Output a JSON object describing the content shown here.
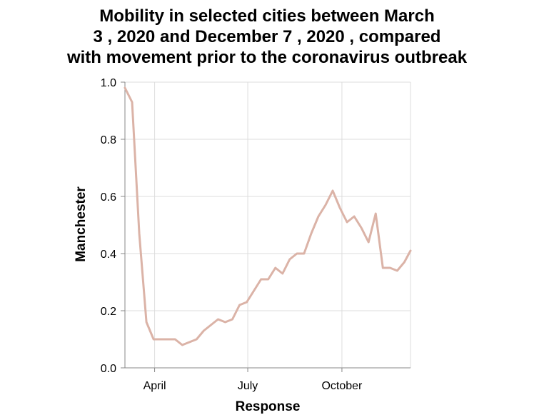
{
  "chart_data": {
    "type": "line",
    "title_lines": [
      "Mobility in selected cities between March",
      "3 , 2020 and December 7 , 2020 , compared",
      "with movement prior to the coronavirus outbreak"
    ],
    "xlabel": "Response",
    "ylabel": "Manchester",
    "x_type": "date",
    "xlim": [
      "2020-03-03",
      "2020-12-07"
    ],
    "ylim": [
      0,
      1
    ],
    "y_ticks": [
      "0.0",
      "0.2",
      "0.4",
      "0.6",
      "0.8",
      "1.0"
    ],
    "x_ticks": [
      {
        "label": "April",
        "date": "2020-04-01"
      },
      {
        "label": "July",
        "date": "2020-07-01"
      },
      {
        "label": "October",
        "date": "2020-10-01"
      }
    ],
    "grid": true,
    "line_color": "#dbb3a7",
    "series": [
      {
        "x": [
          "2020-03-03",
          "2020-03-10",
          "2020-03-17",
          "2020-03-24",
          "2020-03-31",
          "2020-04-07",
          "2020-04-14",
          "2020-04-21",
          "2020-04-28",
          "2020-05-05",
          "2020-05-12",
          "2020-05-19",
          "2020-05-26",
          "2020-06-02",
          "2020-06-09",
          "2020-06-16",
          "2020-06-23",
          "2020-06-30",
          "2020-07-07",
          "2020-07-14",
          "2020-07-21",
          "2020-07-28",
          "2020-08-04",
          "2020-08-11",
          "2020-08-18",
          "2020-08-25",
          "2020-09-01",
          "2020-09-08",
          "2020-09-15",
          "2020-09-22",
          "2020-09-29",
          "2020-10-06",
          "2020-10-13",
          "2020-10-20",
          "2020-10-27",
          "2020-11-03",
          "2020-11-10",
          "2020-11-17",
          "2020-11-24",
          "2020-12-01",
          "2020-12-07"
        ],
        "y": [
          0.98,
          0.93,
          0.47,
          0.16,
          0.1,
          0.1,
          0.1,
          0.1,
          0.08,
          0.09,
          0.1,
          0.13,
          0.15,
          0.17,
          0.16,
          0.17,
          0.22,
          0.23,
          0.27,
          0.31,
          0.31,
          0.35,
          0.33,
          0.38,
          0.4,
          0.4,
          0.47,
          0.53,
          0.57,
          0.62,
          0.56,
          0.51,
          0.53,
          0.49,
          0.44,
          0.54,
          0.35,
          0.35,
          0.34,
          0.37,
          0.41
        ]
      }
    ]
  }
}
